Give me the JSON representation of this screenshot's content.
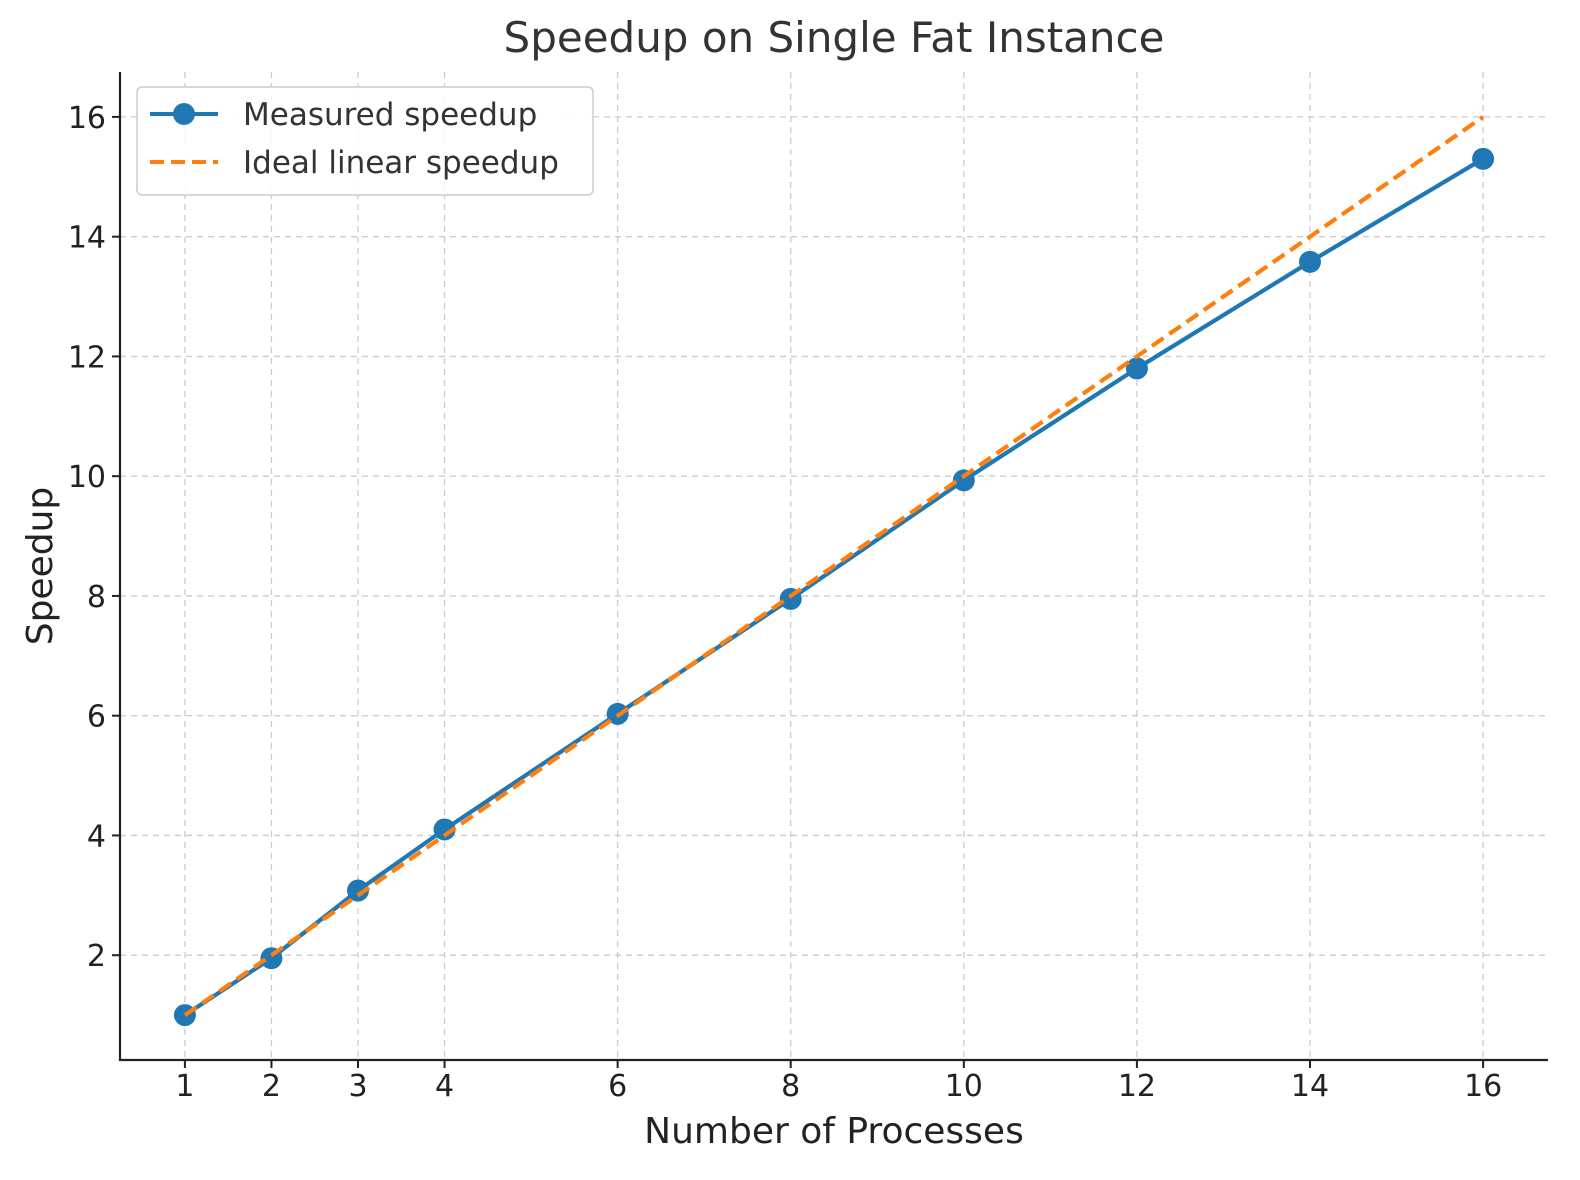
{
  "chart_data": {
    "type": "line",
    "title": "Speedup on Single Fat Instance",
    "xlabel": "Number of Processes",
    "ylabel": "Speedup",
    "x": [
      1,
      2,
      3,
      4,
      6,
      8,
      10,
      12,
      14,
      16
    ],
    "x_ticks": [
      "1",
      "2",
      "3",
      "4",
      "6",
      "8",
      "10",
      "12",
      "14",
      "16"
    ],
    "y_ticks": [
      "2",
      "4",
      "6",
      "8",
      "10",
      "12",
      "14",
      "16"
    ],
    "xlim": [
      0.25,
      16.75
    ],
    "ylim": [
      0.25,
      16.75
    ],
    "grid": true,
    "legend_position": "top-left",
    "series": [
      {
        "name": "Measured speedup",
        "values": [
          1.0,
          1.95,
          3.08,
          4.1,
          6.03,
          7.95,
          9.93,
          11.8,
          13.58,
          15.3
        ],
        "color": "#1f77b4",
        "style": "solid",
        "marker": "circle"
      },
      {
        "name": "Ideal linear speedup",
        "values": [
          1,
          2,
          3,
          4,
          6,
          8,
          10,
          12,
          14,
          16
        ],
        "color": "#ff7f0e",
        "style": "dashed",
        "marker": "none"
      }
    ]
  }
}
